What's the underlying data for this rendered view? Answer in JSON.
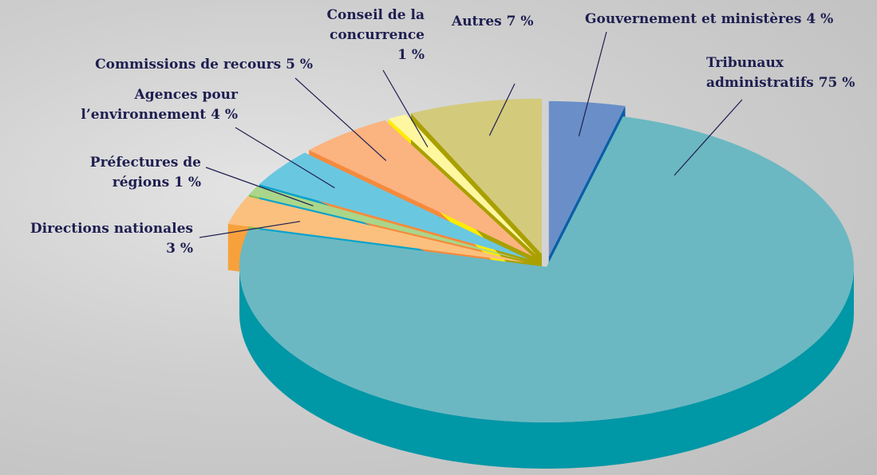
{
  "chart_data": {
    "type": "pie3d",
    "categories": [
      "Gouvernement et ministères",
      "Tribunaux administratifs",
      "Directions nationales",
      "Préfectures de régions",
      "Agences pour l’environnement",
      "Commissions de recours",
      "Conseil de la concurrence",
      "Autres"
    ],
    "values": [
      4,
      75,
      3,
      1,
      4,
      5,
      1,
      7
    ],
    "value_labels": [
      "4 %",
      "75 %",
      "3 %",
      "1 %",
      "4 %",
      "5 %",
      "1 %",
      "7 %"
    ],
    "colors": [
      "#6a8fc8",
      "#6bb8c2",
      "#fbc07e",
      "#a9d68a",
      "#6ac7e0",
      "#fbb380",
      "#fff7a0",
      "#d3ca7c"
    ],
    "side_colors": [
      "#0a5ea8",
      "#0097a7",
      "#f7a13c",
      "#7cc04c",
      "#0aa3cc",
      "#f68a3c",
      "#ffec00",
      "#a9a000"
    ]
  }
}
